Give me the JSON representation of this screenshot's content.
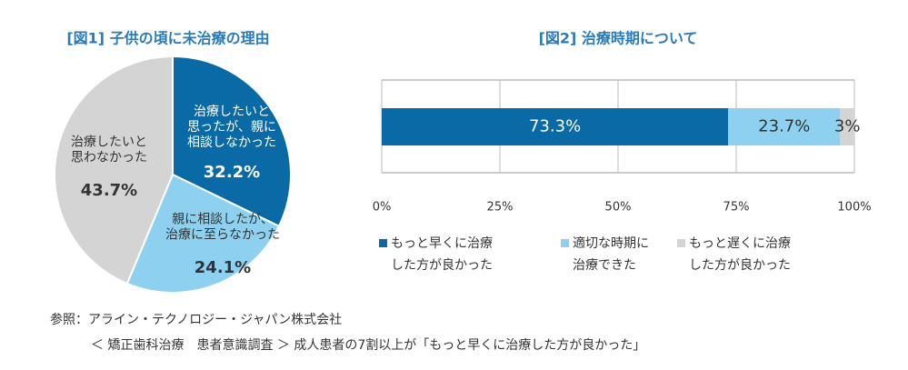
{
  "chart_data": [
    {
      "type": "pie",
      "title": "[図1] 子供の頃に未治療の理由",
      "categories": [
        [
          "治療したいと",
          "思ったが、親に",
          "相談しなかった"
        ],
        [
          "親に相談したが、",
          "治療に至らなかった"
        ],
        [
          "治療したいと",
          "思わなかった"
        ]
      ],
      "values": [
        32.2,
        24.1,
        43.7
      ],
      "value_labels": [
        "32.2%",
        "24.1%",
        "43.7%"
      ],
      "colors": [
        "#0a6aa6",
        "#8dd0ef",
        "#d4d4d4"
      ]
    },
    {
      "type": "stacked-bar",
      "title": "[図2] 治療時期について",
      "series": [
        {
          "name": [
            "もっと早くに治療",
            "した方が良かった"
          ],
          "color": "#0a6aa6",
          "values": [
            73.3
          ],
          "value_labels": [
            "73.3%"
          ]
        },
        {
          "name": [
            "適切な時期に",
            "治療できた"
          ],
          "color": "#8dd0ef",
          "values": [
            23.7
          ],
          "value_labels": [
            "23.7%"
          ]
        },
        {
          "name": [
            "もっと遅くに治療",
            "した方が良かった"
          ],
          "color": "#d4d4d4",
          "values": [
            3
          ],
          "value_labels": [
            "3%"
          ]
        }
      ],
      "xlim": [
        0,
        100
      ],
      "xticks": [
        {
          "value": 0,
          "label": "0%"
        },
        {
          "value": 25,
          "label": "25%"
        },
        {
          "value": 50,
          "label": "50%"
        },
        {
          "value": 75,
          "label": "75%"
        },
        {
          "value": 100,
          "label": "100%"
        }
      ],
      "grid": true
    }
  ],
  "notes": [
    "参照：アライン・テクノロジー・ジャパン株式会社",
    "＜ 矯正歯科治療　患者意識調査 ＞ 成人患者の7割以上が「もっと早くに治療した方が良かった」"
  ]
}
